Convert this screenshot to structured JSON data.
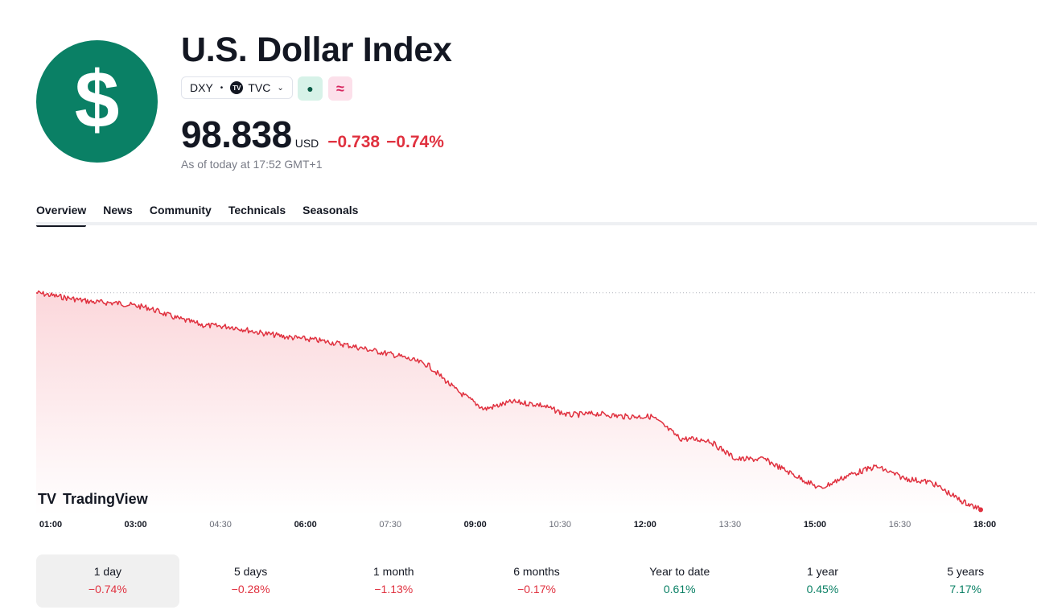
{
  "header": {
    "title": "U.S. Dollar Index",
    "logo_symbol": "$",
    "ticker": "DXY",
    "exchange": "TVC",
    "exchange_logo": "TV",
    "price": "98.838",
    "currency": "USD",
    "change_abs": "−0.738",
    "change_pct": "−0.74%",
    "as_of": "As of today at 17:52 GMT+1",
    "market_status_icon": "●",
    "compare_icon": "≈"
  },
  "tabs": [
    {
      "label": "Overview",
      "active": true
    },
    {
      "label": "News"
    },
    {
      "label": "Community"
    },
    {
      "label": "Technicals"
    },
    {
      "label": "Seasonals"
    }
  ],
  "chart_data": {
    "type": "area",
    "title": "",
    "xlabel": "",
    "ylabel": "",
    "x_ticks": [
      "01:00",
      "03:00",
      "04:30",
      "06:00",
      "07:30",
      "09:00",
      "10:30",
      "12:00",
      "13:30",
      "15:00",
      "16:30",
      "18:00"
    ],
    "bold_ticks": [
      "01:00",
      "03:00",
      "06:00",
      "09:00",
      "12:00",
      "15:00",
      "18:00"
    ],
    "x": [
      "01:00",
      "01:30",
      "02:00",
      "02:30",
      "03:00",
      "03:30",
      "04:00",
      "04:30",
      "05:00",
      "05:30",
      "06:00",
      "06:30",
      "07:00",
      "07:30",
      "08:00",
      "08:30",
      "09:00",
      "09:30",
      "10:00",
      "10:30",
      "11:00",
      "11:30",
      "12:00",
      "12:30",
      "13:00",
      "13:30",
      "14:00",
      "14:30",
      "15:00",
      "15:30",
      "16:00",
      "16:30",
      "17:00",
      "17:30",
      "17:52"
    ],
    "values": [
      99.576,
      99.56,
      99.545,
      99.54,
      99.525,
      99.49,
      99.465,
      99.46,
      99.44,
      99.425,
      99.415,
      99.4,
      99.38,
      99.36,
      99.33,
      99.245,
      99.18,
      99.205,
      99.195,
      99.16,
      99.165,
      99.155,
      99.155,
      99.08,
      99.075,
      99.01,
      99.01,
      98.96,
      98.91,
      98.955,
      98.985,
      98.945,
      98.93,
      98.87,
      98.838
    ],
    "previous_close": 99.576,
    "ylim": [
      98.82,
      99.6
    ],
    "line_color": "#e0313f",
    "fill_color": "#fbd7db",
    "watermark": "TradingView",
    "grid": false
  },
  "performance": [
    {
      "label": "1 day",
      "value": "−0.74%",
      "trend": "neg",
      "active": true
    },
    {
      "label": "5 days",
      "value": "−0.28%",
      "trend": "neg"
    },
    {
      "label": "1 month",
      "value": "−1.13%",
      "trend": "neg"
    },
    {
      "label": "6 months",
      "value": "−0.17%",
      "trend": "neg"
    },
    {
      "label": "Year to date",
      "value": "0.61%",
      "trend": "pos"
    },
    {
      "label": "1 year",
      "value": "0.45%",
      "trend": "pos"
    },
    {
      "label": "5 years",
      "value": "7.17%",
      "trend": "pos"
    }
  ],
  "colors": {
    "brand_green": "#0a8065",
    "negative": "#e0313f",
    "positive": "#0a8065"
  }
}
